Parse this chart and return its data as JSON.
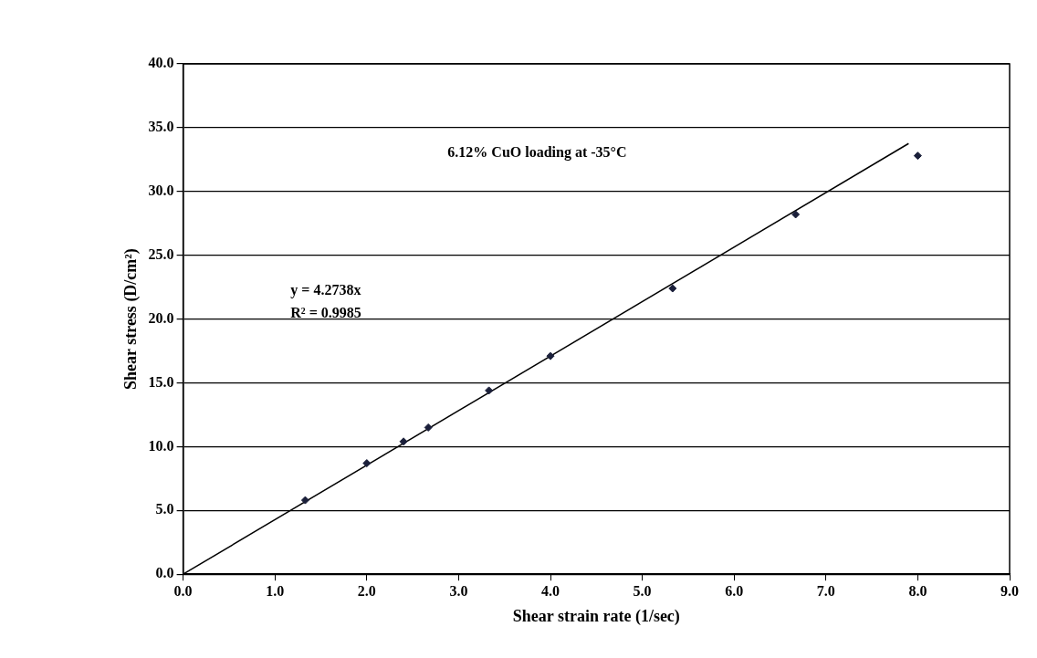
{
  "chart_data": {
    "type": "scatter",
    "xlabel": "Shear strain rate (1/sec)",
    "ylabel": "Shear stress (D/cm²)",
    "annotations": [
      "6.12% CuO loading at -35°C",
      "y = 4.2738x",
      "R² = 0.9985"
    ],
    "xlim": [
      0,
      9
    ],
    "xticks": [
      {
        "value": 0,
        "label": "0.0"
      },
      {
        "value": 1,
        "label": "1.0"
      },
      {
        "value": 2,
        "label": "2.0"
      },
      {
        "value": 3,
        "label": "3.0"
      },
      {
        "value": 4,
        "label": "4.0"
      },
      {
        "value": 5,
        "label": "5.0"
      },
      {
        "value": 6,
        "label": "6.0"
      },
      {
        "value": 7,
        "label": "7.0"
      },
      {
        "value": 8,
        "label": "8.0"
      },
      {
        "value": 9,
        "label": "9.0"
      }
    ],
    "ylim": [
      0,
      40
    ],
    "yticks": [
      {
        "value": 0,
        "label": "0.0"
      },
      {
        "value": 5,
        "label": "5.0"
      },
      {
        "value": 10,
        "label": "10.0"
      },
      {
        "value": 15,
        "label": "15.0"
      },
      {
        "value": 20,
        "label": "20.0"
      },
      {
        "value": 25,
        "label": "25.0"
      },
      {
        "value": 30,
        "label": "30.0"
      },
      {
        "value": 35,
        "label": "35.0"
      },
      {
        "value": 40,
        "label": "40.0"
      }
    ],
    "grid": "y",
    "legend": false,
    "series": [
      {
        "color": "#1a1f3a",
        "marker": "diamond",
        "x": [
          1.33,
          2.0,
          2.4,
          2.67,
          3.33,
          4.0,
          5.33,
          6.67,
          8.0
        ],
        "values": [
          5.8,
          8.7,
          10.4,
          11.5,
          14.4,
          17.1,
          22.4,
          28.2,
          32.8
        ]
      },
      {
        "type": "line",
        "color": "#000000",
        "marker": "none",
        "x": [
          0,
          7.9
        ],
        "values": [
          0,
          33.76
        ]
      }
    ]
  }
}
